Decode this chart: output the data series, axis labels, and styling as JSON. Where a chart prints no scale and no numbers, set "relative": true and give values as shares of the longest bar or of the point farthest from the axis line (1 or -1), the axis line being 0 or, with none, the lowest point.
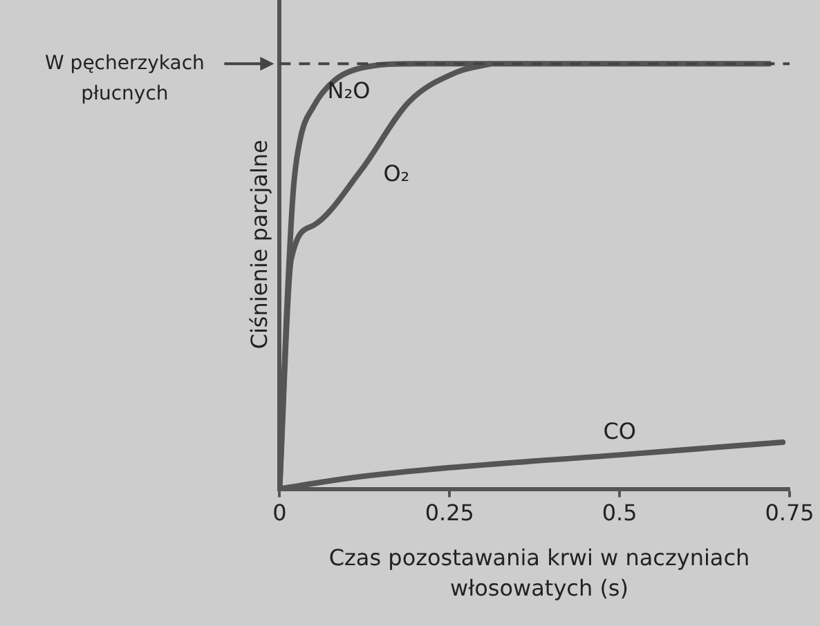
{
  "chart_data": {
    "type": "line",
    "relative": true,
    "xlabel": "Czas pozostawania krwi w naczyniach włosowatych (s)",
    "ylabel": "Ciśnienie parcjalne",
    "xlim": [
      0,
      0.75
    ],
    "xticks": [
      0,
      0.25,
      0.5,
      0.75
    ],
    "grid": false,
    "legend": false,
    "marker": "none",
    "line_style": "solid",
    "series": [
      {
        "name": "N₂O",
        "color": "#555555",
        "x": [
          0,
          0.01,
          0.02,
          0.03,
          0.05,
          0.08,
          0.12,
          0.2,
          0.72
        ],
        "values": [
          0,
          0.4,
          0.7,
          0.82,
          0.9,
          0.96,
          0.99,
          1.0,
          1.0
        ]
      },
      {
        "name": "O₂",
        "color": "#555555",
        "x": [
          0,
          0.017,
          0.05,
          0.12,
          0.19,
          0.26,
          0.31
        ],
        "values": [
          0,
          0.54,
          0.62,
          0.75,
          0.91,
          0.98,
          1.0
        ]
      },
      {
        "name": "CO",
        "color": "#555555",
        "x": [
          0,
          0.1,
          0.25,
          0.5,
          0.74
        ],
        "values": [
          0,
          0.025,
          0.05,
          0.08,
          0.11
        ]
      }
    ],
    "ref_lines": [
      {
        "axis": "y",
        "value": 1,
        "label": "W pęcherzykach płucnych",
        "line_style": "dashed",
        "color": "#444444"
      }
    ]
  }
}
